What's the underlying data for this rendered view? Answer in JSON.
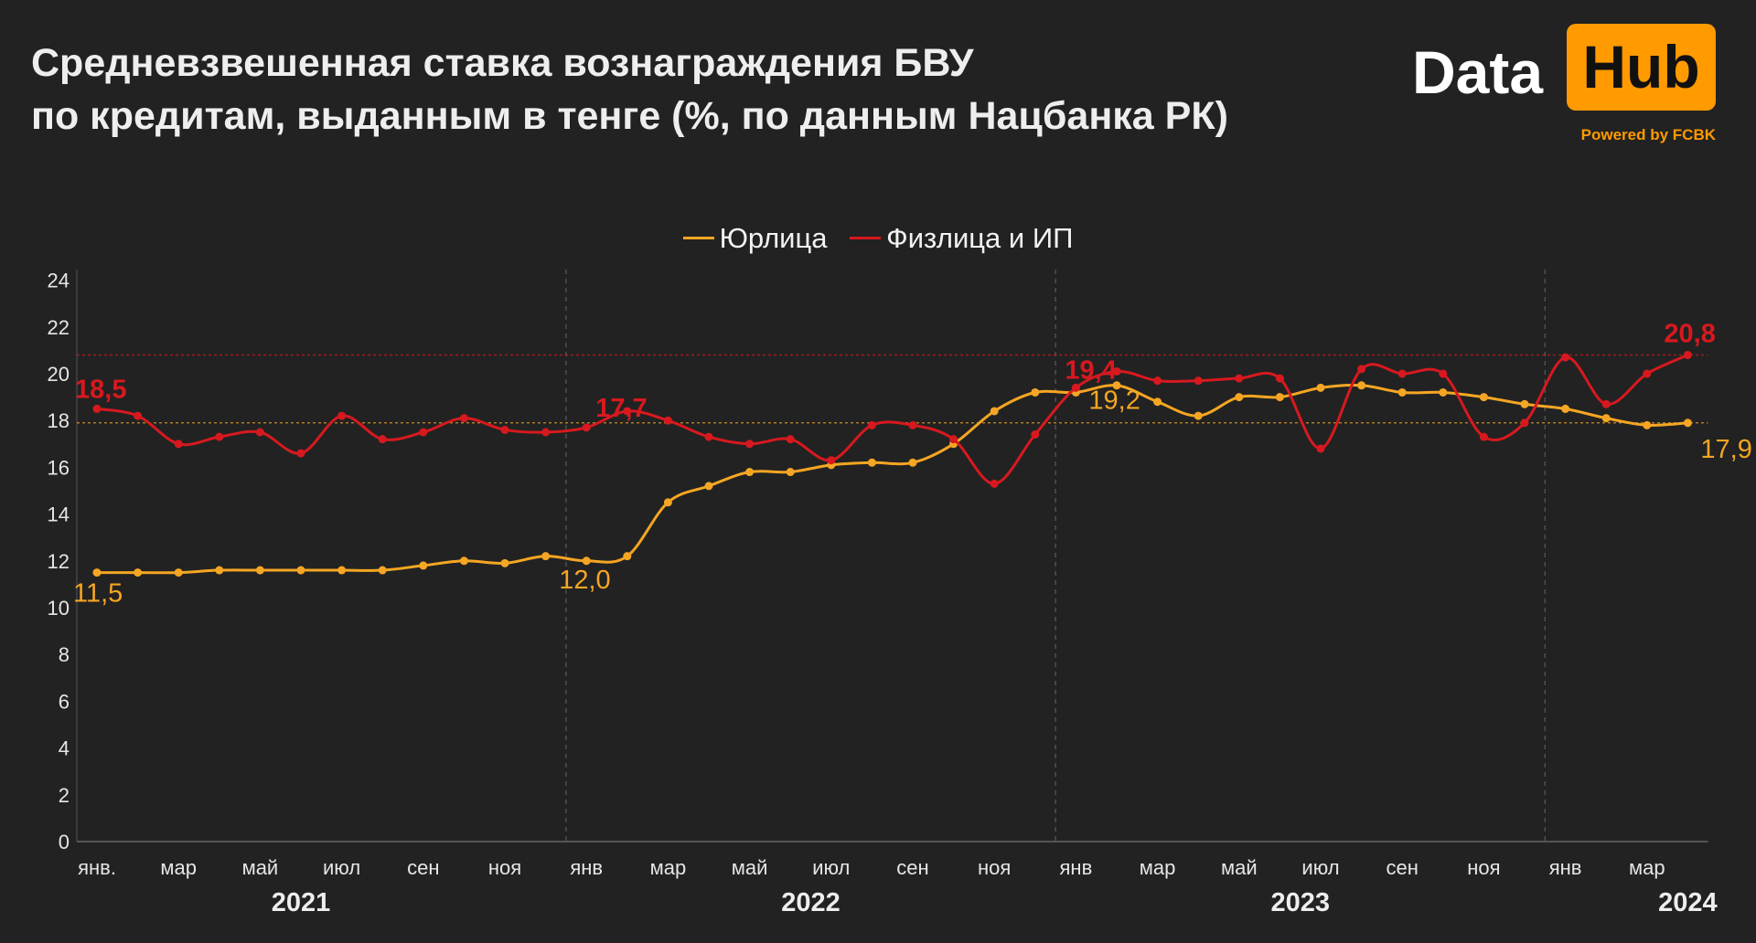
{
  "title_line1": "Средневзвешенная ставка вознаграждения БВУ",
  "title_line2": "по кредитам, выданным в тенге (%, по данным Нацбанка РК)",
  "logo": {
    "data": "Data",
    "hub": "Hub",
    "powered": "Powered by FCBK"
  },
  "colors": {
    "background": "#222222",
    "legal": "#f5a623",
    "individuals": "#d7191f",
    "brand": "#ff9a00"
  },
  "chart_data": {
    "type": "line",
    "title": "Средневзвешенная ставка вознаграждения БВУ по кредитам, выданным в тенге (%, по данным Нацбанка РК)",
    "ylim": [
      0,
      24
    ],
    "yticks": [
      0,
      2,
      4,
      6,
      8,
      10,
      12,
      14,
      16,
      18,
      20,
      22,
      24
    ],
    "month_labels": [
      "янв.",
      "мар",
      "май",
      "июл",
      "сен",
      "ноя",
      "янв",
      "мар",
      "май",
      "июл",
      "сен",
      "ноя",
      "янв",
      "мар",
      "май",
      "июл",
      "сен",
      "ноя",
      "янв",
      "мар"
    ],
    "year_labels": [
      "2021",
      "2022",
      "2023",
      "2024"
    ],
    "legend_position": "top-center",
    "series": [
      {
        "name": "Юрлица",
        "color": "#f5a623",
        "values": [
          11.5,
          11.5,
          11.5,
          11.6,
          11.6,
          11.6,
          11.6,
          11.6,
          11.8,
          12.0,
          11.9,
          12.2,
          12.0,
          12.2,
          14.5,
          15.2,
          15.8,
          15.8,
          16.1,
          16.2,
          16.2,
          17.0,
          18.4,
          19.2,
          19.2,
          19.5,
          18.8,
          18.2,
          19.0,
          19.0,
          19.4,
          19.5,
          19.2,
          19.2,
          19.0,
          18.7,
          18.5,
          18.1,
          17.8,
          17.9
        ],
        "labels": [
          {
            "index": 0,
            "text": "11,5"
          },
          {
            "index": 12,
            "text": "12,0"
          },
          {
            "index": 24,
            "text": "19,2"
          },
          {
            "index": 39,
            "text": "17,9"
          }
        ]
      },
      {
        "name": "Физлица и ИП",
        "color": "#d7191f",
        "values": [
          18.5,
          18.2,
          17.0,
          17.3,
          17.5,
          16.6,
          18.2,
          17.2,
          17.5,
          18.1,
          17.6,
          17.5,
          17.7,
          18.4,
          18.0,
          17.3,
          17.0,
          17.2,
          16.3,
          17.8,
          17.8,
          17.2,
          15.3,
          17.4,
          19.4,
          20.1,
          19.7,
          19.7,
          19.8,
          19.8,
          16.8,
          20.2,
          20.0,
          20.0,
          17.3,
          17.9,
          20.7,
          18.7,
          20.0,
          20.8
        ],
        "labels": [
          {
            "index": 0,
            "text": "18,5"
          },
          {
            "index": 12,
            "text": "17,7"
          },
          {
            "index": 24,
            "text": "19,4"
          },
          {
            "index": 39,
            "text": "20,8"
          }
        ]
      }
    ],
    "reference_lines": [
      {
        "series": "Физлица и ИП",
        "value": 20.8
      },
      {
        "series": "Юрлица",
        "value": 17.9
      }
    ],
    "year_separators_after_month_index": [
      11,
      23,
      35
    ]
  }
}
